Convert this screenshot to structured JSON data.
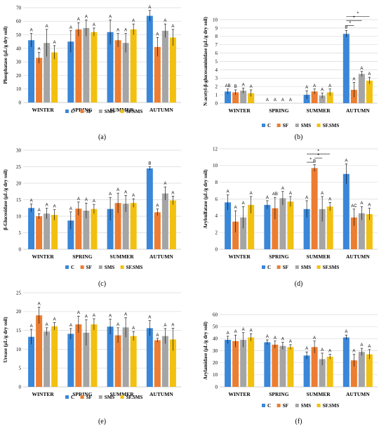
{
  "colors": {
    "C": "#3a87d9",
    "SF": "#ed7d31",
    "SMS": "#a5a5a5",
    "SF.SMS": "#f2c00f",
    "grid": "#d9d9d9"
  },
  "series_names": [
    "C",
    "SF",
    "SMS",
    "SF.SMS"
  ],
  "chart_data": [
    {
      "type": "bar",
      "panel_label": "(a)",
      "ylabel": "Phosphatase (μL/g dry soil)",
      "ylim": [
        0,
        70
      ],
      "yticks": [
        0,
        10,
        20,
        30,
        40,
        50,
        60,
        70
      ],
      "categories": [
        "WINTER",
        "SPRING",
        "SUMMER",
        "AUTUMN"
      ],
      "series": [
        {
          "name": "C",
          "values": [
            46,
            45,
            52,
            64
          ],
          "errors": [
            5,
            8,
            9,
            4
          ],
          "letters": [
            "A",
            "A",
            "A",
            "A"
          ]
        },
        {
          "name": "SF",
          "values": [
            33,
            54,
            46,
            41
          ],
          "errors": [
            4,
            5,
            5,
            7
          ],
          "letters": [
            "A",
            "A",
            "A",
            "A"
          ]
        },
        {
          "name": "SMS",
          "values": [
            44,
            55,
            44,
            53
          ],
          "errors": [
            10,
            6,
            7,
            5
          ],
          "letters": [
            "A",
            "A",
            "A",
            "A"
          ]
        },
        {
          "name": "SF.SMS",
          "values": [
            37,
            52,
            54,
            48
          ],
          "errors": [
            5,
            3,
            4,
            6
          ],
          "letters": [
            "A",
            "A",
            "A",
            "A"
          ]
        }
      ],
      "significance": []
    },
    {
      "type": "bar",
      "panel_label": "(b)",
      "ylabel": "N-acetyl-β-glucosaminidase (μL/g dry soil)",
      "ylim": [
        0,
        10
      ],
      "yticks": [
        0,
        1,
        2,
        3,
        4,
        5,
        6,
        7,
        8,
        9,
        10
      ],
      "categories": [
        "WINTER",
        "SPRING",
        "SUMMER",
        "AUTUMN"
      ],
      "series": [
        {
          "name": "C",
          "values": [
            1.4,
            0,
            1.0,
            8.3
          ],
          "errors": [
            0.3,
            0,
            0.5,
            0.4
          ],
          "letters": [
            "AB",
            "A",
            "A",
            "B"
          ]
        },
        {
          "name": "SF",
          "values": [
            1.3,
            0,
            1.4,
            1.6
          ],
          "errors": [
            0.3,
            0,
            0.3,
            0.9
          ],
          "letters": [
            "B",
            "A",
            "A",
            "A"
          ]
        },
        {
          "name": "SMS",
          "values": [
            1.5,
            0,
            0.9,
            3.5
          ],
          "errors": [
            0.3,
            0,
            0.3,
            0.3
          ],
          "letters": [
            "A",
            "A",
            "A",
            "A"
          ]
        },
        {
          "name": "SF.SMS",
          "values": [
            1.2,
            0,
            1.3,
            2.7
          ],
          "errors": [
            0.4,
            0,
            0.4,
            0.4
          ],
          "letters": [
            "A",
            "A",
            "A",
            "A"
          ]
        }
      ],
      "significance": [
        {
          "category": "AUTUMN",
          "from": 0,
          "to": 3,
          "value": 10.4,
          "label": "*"
        },
        {
          "category": "AUTUMN",
          "from": 0,
          "to": 2,
          "value": 9.9,
          "label": "*"
        },
        {
          "category": "AUTUMN",
          "from": 0,
          "to": 1,
          "value": 9.3,
          "label": "*"
        }
      ]
    },
    {
      "type": "bar",
      "panel_label": "(c)",
      "ylabel": "β-Glucosidase (μL/g dry soil)",
      "ylim": [
        0,
        30
      ],
      "yticks": [
        0,
        5,
        10,
        15,
        20,
        25,
        30
      ],
      "categories": [
        "WINTER",
        "SPRING",
        "SUMMER",
        "AUTUMN"
      ],
      "series": [
        {
          "name": "C",
          "values": [
            12.5,
            8.7,
            12.2,
            24.5
          ],
          "errors": [
            1.2,
            2.6,
            3.5,
            0.5
          ],
          "letters": [
            "A",
            "A",
            "A",
            "B"
          ]
        },
        {
          "name": "SF",
          "values": [
            10,
            12.3,
            14,
            11.2
          ],
          "errors": [
            0.8,
            2.0,
            3.0,
            1.0
          ],
          "letters": [
            "A",
            "A",
            "A",
            "A"
          ]
        },
        {
          "name": "SMS",
          "values": [
            10.8,
            11.7,
            13.8,
            16.9
          ],
          "errors": [
            1.6,
            2.3,
            2.5,
            2.0
          ],
          "letters": [
            "A",
            "A",
            "A",
            "A"
          ]
        },
        {
          "name": "SF.SMS",
          "values": [
            10.4,
            12.2,
            14,
            14.8
          ],
          "errors": [
            1.6,
            1.4,
            1.3,
            1.3
          ],
          "letters": [
            "A",
            "A",
            "A",
            "A"
          ]
        }
      ],
      "significance": []
    },
    {
      "type": "bar",
      "panel_label": "(d)",
      "ylabel": "Arylsulfatase (μL/g dry soil)",
      "ylim": [
        0,
        12
      ],
      "yticks": [
        0,
        2,
        4,
        6,
        8,
        10,
        12
      ],
      "categories": [
        "WINTER",
        "SPRING",
        "SUMMER",
        "AUTUMN"
      ],
      "series": [
        {
          "name": "C",
          "values": [
            5.6,
            5.3,
            4.8,
            9.0
          ],
          "errors": [
            0.9,
            0.5,
            1.0,
            1.2
          ],
          "letters": [
            "A",
            "A",
            "A",
            "A"
          ]
        },
        {
          "name": "SF",
          "values": [
            3.3,
            4.9,
            9.7,
            3.8
          ],
          "errors": [
            1.3,
            1.3,
            0.4,
            1.0
          ],
          "letters": [
            "A",
            "AB",
            "B",
            "AC"
          ]
        },
        {
          "name": "SMS",
          "values": [
            3.8,
            6.1,
            4.8,
            4.3
          ],
          "errors": [
            1.3,
            0.8,
            1.5,
            0.8
          ],
          "letters": [
            "A",
            "A",
            "A",
            "A"
          ]
        },
        {
          "name": "SF.SMS",
          "values": [
            5.3,
            5.7,
            5.1,
            4.2
          ],
          "errors": [
            1.0,
            0.6,
            0.5,
            0.7
          ],
          "letters": [
            "A",
            "A",
            "A",
            "A"
          ]
        }
      ],
      "significance": [
        {
          "category": "SUMMER",
          "from": 0,
          "to": 3,
          "value": 11.4,
          "label": "*"
        },
        {
          "category": "SUMMER",
          "from": 1,
          "to": 2,
          "value": 10.9,
          "label": "*"
        },
        {
          "category": "SUMMER",
          "from": 0,
          "to": 1,
          "value": 10.4,
          "label": "*"
        }
      ]
    },
    {
      "type": "bar",
      "panel_label": "(e)",
      "ylabel": "Urease (μL/g dry soil)",
      "ylim": [
        0,
        25
      ],
      "yticks": [
        0,
        5,
        10,
        15,
        20,
        25
      ],
      "categories": [
        "WINTER",
        "SPRING",
        "SUMMER",
        "AUTUMN"
      ],
      "series": [
        {
          "name": "C",
          "values": [
            13.3,
            14.1,
            16,
            15.6
          ],
          "errors": [
            2.0,
            1.4,
            2.0,
            2.0
          ],
          "letters": [
            "A",
            "A",
            "A",
            "A"
          ]
        },
        {
          "name": "SF",
          "values": [
            19,
            16.6,
            13.7,
            12.4
          ],
          "errors": [
            2.2,
            2.2,
            2.0,
            0.5
          ],
          "letters": [
            "A",
            "A",
            "A",
            "A"
          ]
        },
        {
          "name": "SMS",
          "values": [
            14.7,
            14.4,
            15.8,
            13.5
          ],
          "errors": [
            1.0,
            3.4,
            2.6,
            2.0
          ],
          "letters": [
            "A",
            "A",
            "A",
            "A"
          ]
        },
        {
          "name": "SF.SMS",
          "values": [
            16.1,
            16.6,
            13.5,
            12.6
          ],
          "errors": [
            1.0,
            1.5,
            1.2,
            3.0
          ],
          "letters": [
            "A",
            "A",
            "A",
            "A"
          ]
        }
      ],
      "significance": []
    },
    {
      "type": "bar",
      "panel_label": "(f)",
      "ylabel": "Arylamidase (μL/g dry soil)",
      "ylim": [
        0,
        60
      ],
      "yticks": [
        0,
        10,
        20,
        30,
        40,
        50,
        60
      ],
      "categories": [
        "WINTER",
        "SPRING",
        "SUMMER",
        "AUTUMN"
      ],
      "series": [
        {
          "name": "C",
          "values": [
            39,
            37,
            26,
            41
          ],
          "errors": [
            3,
            2,
            3,
            2
          ],
          "letters": [
            "A",
            "A",
            "A",
            "A"
          ]
        },
        {
          "name": "SF",
          "values": [
            38,
            35,
            33,
            22
          ],
          "errors": [
            5,
            3,
            5,
            5
          ],
          "letters": [
            "A",
            "A",
            "A",
            "A"
          ]
        },
        {
          "name": "SMS",
          "values": [
            39,
            34,
            23,
            29
          ],
          "errors": [
            6,
            3,
            5,
            3
          ],
          "letters": [
            "A",
            "A",
            "A",
            "A"
          ]
        },
        {
          "name": "SF.SMS",
          "values": [
            41,
            33,
            25,
            27
          ],
          "errors": [
            3,
            2,
            2,
            4
          ],
          "letters": [
            "A",
            "A",
            "A",
            "A"
          ]
        }
      ],
      "significance": []
    }
  ]
}
